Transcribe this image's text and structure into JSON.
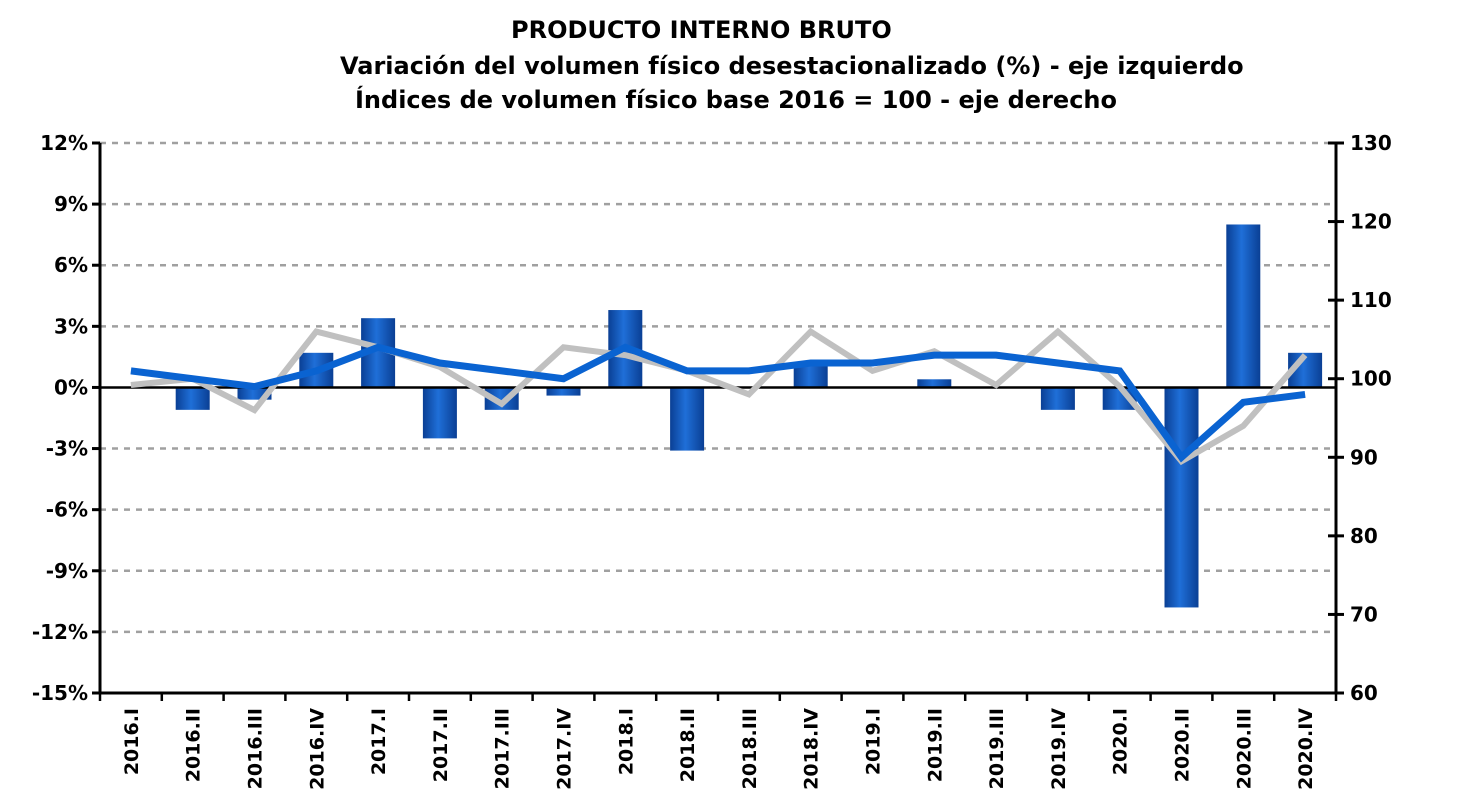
{
  "chart_data": {
    "type": "bar",
    "title": "PRODUCTO INTERNO BRUTO",
    "subtitle_left": "Variación del volumen físico desestacionalizado (%) - eje izquierdo",
    "subtitle_right": "Índices de volumen físico base 2016 = 100 - eje derecho",
    "categories": [
      "2016.I",
      "2016.II",
      "2016.III",
      "2016.IV",
      "2017.I",
      "2017.II",
      "2017.III",
      "2017.IV",
      "2018.I",
      "2018.II",
      "2018.III",
      "2018.IV",
      "2019.I",
      "2019.II",
      "2019.III",
      "2019.IV",
      "2020.I",
      "2020.II",
      "2020.III",
      "2020.IV"
    ],
    "y_left": {
      "ylim": [
        -15,
        12
      ],
      "ticks": [
        12,
        9,
        6,
        3,
        0,
        -3,
        -6,
        -9,
        -12,
        -15
      ],
      "tick_labels": [
        "12%",
        "9%",
        "6%",
        "3%",
        "0%",
        "-3%",
        "-6%",
        "-9%",
        "-12%",
        "-15%"
      ]
    },
    "y_right": {
      "ylim": [
        60,
        130
      ],
      "ticks": [
        130,
        120,
        110,
        100,
        90,
        80,
        70,
        60
      ],
      "tick_labels": [
        "130",
        "120",
        "110",
        "100",
        "90",
        "80",
        "70",
        "60"
      ]
    },
    "grid": true,
    "series": [
      {
        "kind": "bar",
        "axis": "left",
        "color": "#0a4fb0",
        "values": [
          0.0,
          -1.1,
          -0.6,
          1.7,
          3.4,
          -2.5,
          -1.1,
          -0.4,
          3.8,
          -3.1,
          0.0,
          1.1,
          0.0,
          0.4,
          0.0,
          -1.1,
          -1.1,
          -10.8,
          8.0,
          1.7
        ]
      },
      {
        "kind": "line",
        "axis": "right",
        "color": "#c0c0c0",
        "values": [
          99.2,
          100.0,
          96.0,
          106.0,
          104.0,
          101.5,
          96.8,
          104.0,
          103.0,
          101.0,
          98.0,
          106.0,
          101.0,
          103.5,
          99.2,
          106.0,
          99.0,
          89.5,
          94.0,
          103.0
        ]
      },
      {
        "kind": "line",
        "axis": "right",
        "color": "#0a63d1",
        "values": [
          101.0,
          100.0,
          99.0,
          101.0,
          104.0,
          102.0,
          101.0,
          100.0,
          104.0,
          101.0,
          101.0,
          102.0,
          102.0,
          103.0,
          103.0,
          102.0,
          101.0,
          90.0,
          97.0,
          98.0
        ]
      }
    ]
  }
}
